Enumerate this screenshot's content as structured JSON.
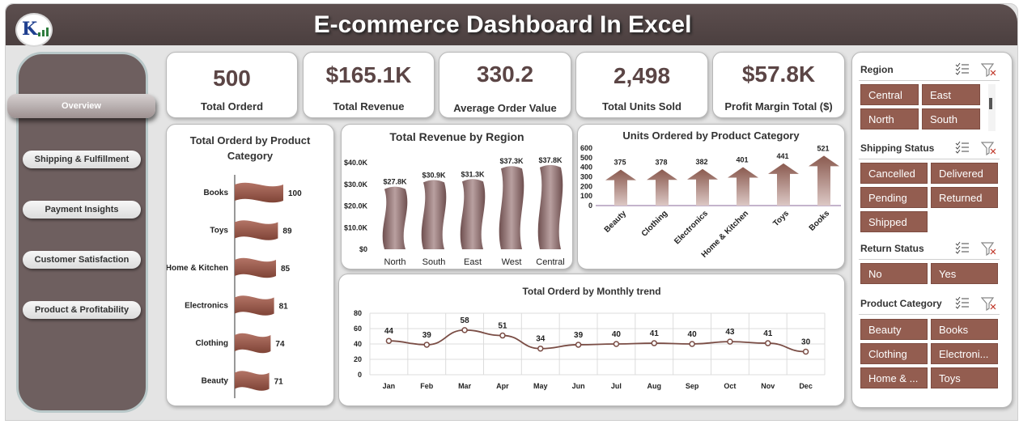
{
  "header": {
    "title": "E-commerce Dashboard In Excel",
    "logo_text": "K",
    "logo_icon": "logo-icon"
  },
  "sidebar": {
    "items": [
      {
        "label": "Overview",
        "active": true
      },
      {
        "label": "Shipping & Fulfillment",
        "active": false
      },
      {
        "label": "Payment Insights",
        "active": false
      },
      {
        "label": "Customer Satisfaction",
        "active": false
      },
      {
        "label": "Product & Profitability",
        "active": false
      }
    ]
  },
  "kpis": [
    {
      "value": "500",
      "label": "Total  Orderd"
    },
    {
      "value": "$165.1K",
      "label": "Total Revenue"
    },
    {
      "value": "330.2",
      "label": "Average Order Value"
    },
    {
      "value": "2,498",
      "label": "Total Units Sold"
    },
    {
      "value": "$57.8K",
      "label": "Profit Margin Total ($)"
    }
  ],
  "chart_data": [
    {
      "type": "bar",
      "orientation": "horizontal",
      "title": "Total  Orderd by Product Category",
      "categories": [
        "Books",
        "Toys",
        "Home & Kitchen",
        "Electronics",
        "Clothing",
        "Beauty"
      ],
      "values": [
        100,
        89,
        85,
        81,
        74,
        71
      ],
      "data_labels": [
        "100",
        "89",
        "85",
        "81",
        "74",
        "71"
      ],
      "color": "#9a5a4c"
    },
    {
      "type": "bar",
      "title": "Total Revenue by Region",
      "categories": [
        "North",
        "South",
        "East",
        "West",
        "Central"
      ],
      "values": [
        27.8,
        30.9,
        31.3,
        37.3,
        37.8
      ],
      "data_labels": [
        "$27.8K",
        "$30.9K",
        "$31.3K",
        "$37.3K",
        "$37.8K"
      ],
      "y_ticks": [
        "$0",
        "$10.0K",
        "$20.0K",
        "$30.0K",
        "$40.0K"
      ],
      "ylim": [
        0,
        40
      ],
      "color": "#8f6f6f"
    },
    {
      "type": "bar",
      "title": "Units Ordered by Product Category",
      "categories": [
        "Beauty",
        "Clothing",
        "Electronics",
        "Home & Kitchen",
        "Toys",
        "Books"
      ],
      "values": [
        375,
        378,
        382,
        401,
        441,
        521
      ],
      "data_labels": [
        "375",
        "378",
        "382",
        "401",
        "441",
        "521"
      ],
      "y_ticks": [
        "0",
        "100",
        "200",
        "300",
        "400",
        "500",
        "600"
      ],
      "ylim": [
        0,
        600
      ],
      "color": "#8a5a4f"
    },
    {
      "type": "line",
      "title": "Total Orderd by Monthly trend",
      "categories": [
        "Jan",
        "Feb",
        "Mar",
        "Apr",
        "May",
        "Jun",
        "Jul",
        "Aug",
        "Sep",
        "Oct",
        "Nov",
        "Dec"
      ],
      "values": [
        44,
        39,
        58,
        51,
        34,
        39,
        40,
        41,
        40,
        43,
        41,
        30
      ],
      "data_labels": [
        "44",
        "39",
        "58",
        "51",
        "34",
        "39",
        "40",
        "41",
        "40",
        "43",
        "41",
        "30"
      ],
      "y_ticks": [
        "0",
        "20",
        "40",
        "60",
        "80"
      ],
      "ylim": [
        0,
        80
      ],
      "grid": true,
      "color": "#7a4d45"
    }
  ],
  "slicers": [
    {
      "title": "Region",
      "items": [
        "Central",
        "East",
        "North",
        "South"
      ]
    },
    {
      "title": "Shipping Status",
      "items": [
        "Cancelled",
        "Delivered",
        "Pending",
        "Returned",
        "Shipped"
      ]
    },
    {
      "title": "Return Status",
      "items": [
        "No",
        "Yes"
      ]
    },
    {
      "title": "Product Category",
      "items": [
        "Beauty",
        "Books",
        "Clothing",
        "Electroni...",
        "Home & ...",
        "Toys"
      ]
    }
  ],
  "slicer_icons": [
    "multi-select-icon",
    "clear-filter-icon"
  ],
  "colors": {
    "header": "#4f4343",
    "sidebar": "#6e5f5f",
    "accent": "#935d50",
    "kpi_value": "#5b4545"
  }
}
